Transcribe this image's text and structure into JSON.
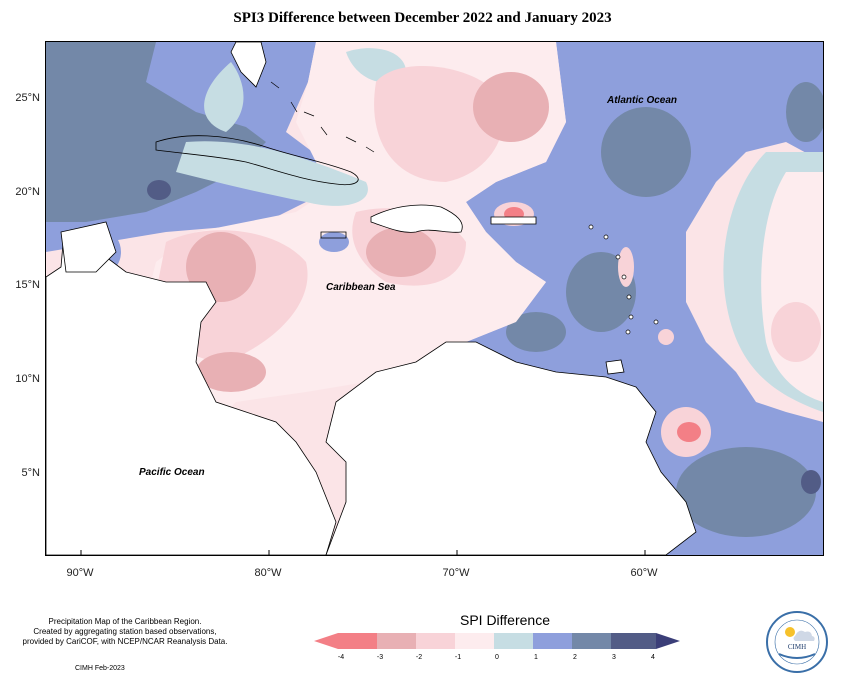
{
  "title": "SPI3 Difference between December 2022 and January 2023",
  "map": {
    "labels": {
      "atlantic": "Atlantic Ocean",
      "caribbean": "Caribbean Sea",
      "pacific": "Pacific Ocean"
    },
    "lat_ticks": [
      "25°N",
      "20°N",
      "15°N",
      "10°N",
      "5°N"
    ],
    "lon_ticks": [
      "90°W",
      "80°W",
      "70°W",
      "60°W"
    ]
  },
  "legend": {
    "title": "SPI Difference",
    "labels": [
      "-4",
      "-3",
      "-2",
      "-1",
      "0",
      "1",
      "2",
      "3",
      "4"
    ],
    "colors": [
      "#f37f86",
      "#e8b0b4",
      "#f8d3d8",
      "#fdecee",
      "#c6dde3",
      "#8e9fdc",
      "#7388a8",
      "#525c86"
    ],
    "arrow_low_color": "#f37f86",
    "arrow_high_color": "#3b3e78"
  },
  "notes": {
    "line1": "Precipitation Map of the Caribbean Region.",
    "line2": "Created by aggregating station based observations,",
    "line3": "provided by CariCOF, with NCEP/NCAR Reanalysis Data.",
    "credit": "CIMH Feb-2023"
  },
  "logo": {
    "text": "CIMH"
  }
}
